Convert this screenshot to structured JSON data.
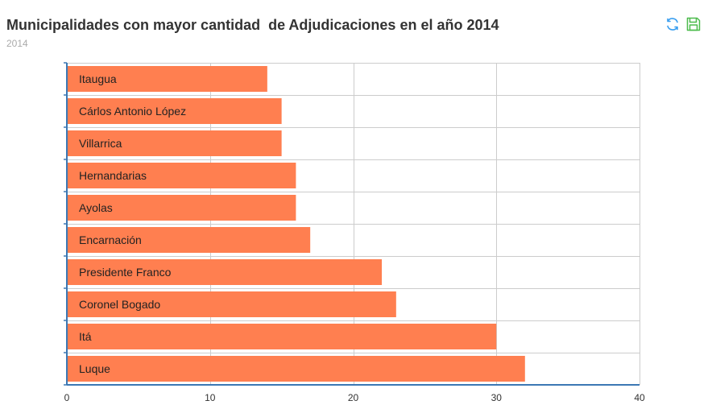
{
  "header": {
    "title": "Municipalidades con mayor cantidad  de Adjudicaciones en el año 2014",
    "subtitle": "2014"
  },
  "toolbox": {
    "refresh_icon": "refresh-icon",
    "save_icon": "save-icon"
  },
  "colors": {
    "bar": "#FF7F50",
    "axis": "#3C78B4",
    "grid": "#cccccc",
    "refresh": "#3b9ff0",
    "save": "#4cbb4c"
  },
  "chart_data": {
    "type": "bar",
    "orientation": "horizontal",
    "title": "Municipalidades con mayor cantidad  de Adjudicaciones en el año 2014",
    "subtitle": "2014",
    "categories": [
      "Itaugua",
      "Cárlos Antonio López",
      "Villarrica",
      "Hernandarias",
      "Ayolas",
      "Encarnación",
      "Presidente Franco",
      "Coronel Bogado",
      "Itá",
      "Luque"
    ],
    "values": [
      14,
      15,
      15,
      16,
      16,
      17,
      22,
      23,
      30,
      32
    ],
    "xlim": [
      0,
      40
    ],
    "xticks": [
      0,
      10,
      20,
      30,
      40
    ],
    "xlabel": "",
    "ylabel": "",
    "grid": true,
    "labels_inside_bars": true
  }
}
